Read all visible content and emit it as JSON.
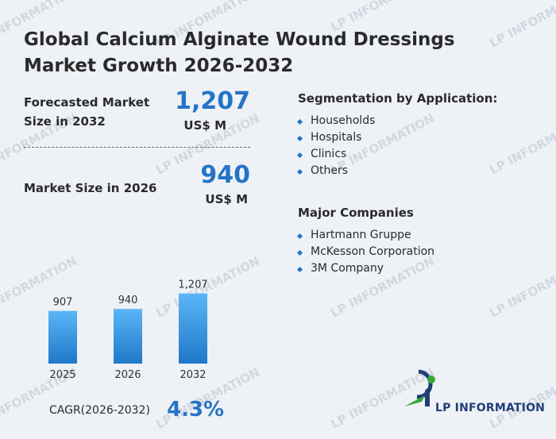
{
  "title": "Global Calcium Alginate Wound Dressings Market Growth 2026-2032",
  "forecast": {
    "label_line1": "Forecasted Market",
    "label_line2": "Size in 2032",
    "value": "1,207",
    "unit": "US$ M"
  },
  "current": {
    "label": "Market Size in 2026",
    "value": "940",
    "unit": "US$ M"
  },
  "segmentation": {
    "title": "Segmentation by Application:",
    "items": [
      "Households",
      "Hospitals",
      "Clinics",
      "Others"
    ]
  },
  "companies": {
    "title": "Major Companies",
    "items": [
      "Hartmann Gruppe",
      "McKesson Corporation",
      "3M Company"
    ]
  },
  "chart_data": {
    "type": "bar",
    "categories": [
      "2025",
      "2026",
      "2032"
    ],
    "values": [
      907,
      940,
      1207
    ],
    "value_labels": [
      "907",
      "940",
      "1,207"
    ],
    "title": "",
    "xlabel": "",
    "ylabel": "",
    "ylim": [
      0,
      1250
    ],
    "grid": false,
    "bar_color_top": "#5ab6f7",
    "bar_color_bottom": "#1f78c8"
  },
  "cagr": {
    "label": "CAGR(2026-2032)",
    "value": "4.3%"
  },
  "brand": {
    "name": "LP INFORMATION",
    "watermark": "LP INFORMATION",
    "accent_color": "#2474c6",
    "green_color": "#3aa63a",
    "navy_color": "#1f3f77"
  }
}
